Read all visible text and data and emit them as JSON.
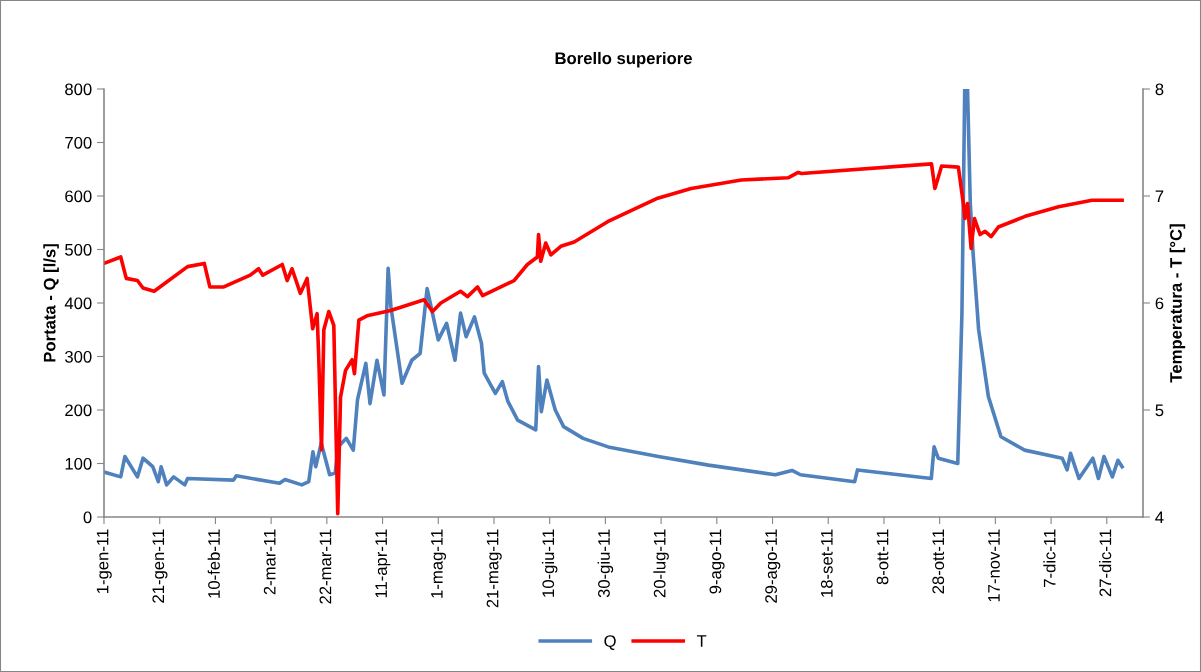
{
  "chart_data": {
    "type": "line",
    "title": "Borello superiore",
    "ylabel": "Portata - Q [l/s]",
    "y2label": "Temperatura - T [°C]",
    "xlim": [
      "2011-01-01",
      "2012-01-09"
    ],
    "xticks": [
      {
        "value": "2011-01-01",
        "label": "1-gen-11"
      },
      {
        "value": "2011-01-21",
        "label": "21-gen-11"
      },
      {
        "value": "2011-02-10",
        "label": "10-feb-11"
      },
      {
        "value": "2011-03-02",
        "label": "2-mar-11"
      },
      {
        "value": "2011-03-22",
        "label": "22-mar-11"
      },
      {
        "value": "2011-04-11",
        "label": "11-apr-11"
      },
      {
        "value": "2011-05-01",
        "label": "1-mag-11"
      },
      {
        "value": "2011-05-21",
        "label": "21-mag-11"
      },
      {
        "value": "2011-06-10",
        "label": "10-giu-11"
      },
      {
        "value": "2011-06-30",
        "label": "30-giu-11"
      },
      {
        "value": "2011-07-20",
        "label": "20-lug-11"
      },
      {
        "value": "2011-08-09",
        "label": "9-ago-11"
      },
      {
        "value": "2011-08-29",
        "label": "29-ago-11"
      },
      {
        "value": "2011-09-18",
        "label": "18-set-11"
      },
      {
        "value": "2011-10-08",
        "label": "8-ott-11"
      },
      {
        "value": "2011-10-28",
        "label": "28-ott-11"
      },
      {
        "value": "2011-11-17",
        "label": "17-nov-11"
      },
      {
        "value": "2011-12-07",
        "label": "7-dic-11"
      },
      {
        "value": "2011-12-27",
        "label": "27-dic-11"
      }
    ],
    "ylim": [
      0,
      800
    ],
    "yticks": [
      0,
      100,
      200,
      300,
      400,
      500,
      600,
      700,
      800
    ],
    "y2lim": [
      4,
      8
    ],
    "y2ticks": [
      4,
      5,
      6,
      7,
      8
    ],
    "legend": "bottom",
    "line_style": "solid",
    "series": [
      {
        "name": "Q",
        "color": "#4f81bd",
        "axis": "y",
        "x": [
          "2011-01-01",
          "2011-01-07",
          "2011-01-08T12:00",
          "2011-01-13",
          "2011-01-15",
          "2011-01-18T12:00",
          "2011-01-20T12:00",
          "2011-01-21T12:00",
          "2011-01-23T12:00",
          "2011-01-26",
          "2011-01-30",
          "2011-01-31",
          "2011-02-16T12:00",
          "2011-02-17T12:00",
          "2011-03-05",
          "2011-03-07",
          "2011-03-13",
          "2011-03-15T12:00",
          "2011-03-17",
          "2011-03-18",
          "2011-03-20",
          "2011-03-23",
          "2011-03-25",
          "2011-03-26",
          "2011-03-29",
          "2011-03-31T12:00",
          "2011-04-02",
          "2011-04-05",
          "2011-04-06T12:00",
          "2011-04-09",
          "2011-04-11T12:00",
          "2011-04-13",
          "2011-04-14",
          "2011-04-18",
          "2011-04-21T12:00",
          "2011-04-24T12:00",
          "2011-04-27",
          "2011-05-01",
          "2011-05-04",
          "2011-05-07",
          "2011-05-09",
          "2011-05-11",
          "2011-05-14",
          "2011-05-16T12:00",
          "2011-05-17T12:00",
          "2011-05-21T12:00",
          "2011-05-24",
          "2011-05-26",
          "2011-05-29T12:00",
          "2011-06-05",
          "2011-06-06",
          "2011-06-07",
          "2011-06-09",
          "2011-06-12",
          "2011-06-15",
          "2011-06-22",
          "2011-07-01",
          "2011-07-19",
          "2011-08-06",
          "2011-08-30",
          "2011-09-05",
          "2011-09-08",
          "2011-09-27T12:00",
          "2011-09-28T12:00",
          "2011-10-25",
          "2011-10-26",
          "2011-10-27T12:00",
          "2011-11-03T12:00",
          "2011-11-05",
          "2011-11-06",
          "2011-11-07",
          "2011-11-08",
          "2011-11-09",
          "2011-11-11",
          "2011-11-14T12:00",
          "2011-11-19",
          "2011-11-27T12:00",
          "2011-12-11",
          "2011-12-12T18:00",
          "2011-12-14",
          "2011-12-17",
          "2011-12-22",
          "2011-12-24",
          "2011-12-26",
          "2011-12-29",
          "2011-12-31",
          "2012-01-01T12:00"
        ],
        "values": [
          84,
          75,
          113,
          75,
          110,
          94,
          66,
          94,
          60,
          75,
          60,
          72,
          69,
          77,
          63,
          70,
          60,
          66,
          122,
          94,
          138,
          79,
          82,
          131,
          147,
          125,
          219,
          287,
          212,
          293,
          228,
          465,
          393,
          250,
          293,
          306,
          427,
          331,
          362,
          293,
          381,
          337,
          374,
          325,
          269,
          231,
          253,
          216,
          181,
          163,
          281,
          197,
          256,
          200,
          169,
          147,
          131,
          113,
          97,
          79,
          87,
          79,
          66,
          88,
          72,
          131,
          110,
          100,
          381,
          800,
          800,
          586,
          493,
          350,
          225,
          150,
          125,
          110,
          88,
          119,
          72,
          110,
          72,
          113,
          75,
          106,
          94
        ]
      },
      {
        "name": "T",
        "color": "#ff0000",
        "axis": "y2",
        "x": [
          "2011-01-01",
          "2011-01-07",
          "2011-01-09",
          "2011-01-13",
          "2011-01-15",
          "2011-01-19",
          "2011-01-31",
          "2011-02-06",
          "2011-02-08",
          "2011-02-13",
          "2011-02-22T12:00",
          "2011-02-25T12:00",
          "2011-02-27",
          "2011-03-06",
          "2011-03-07T18:00",
          "2011-03-09T12:00",
          "2011-03-12T12:00",
          "2011-03-14T22:00",
          "2011-03-16T22:00",
          "2011-03-18T12:00",
          "2011-03-19T02:00",
          "2011-03-20T02:00",
          "2011-03-20T22:00",
          "2011-03-22T17:00",
          "2011-03-24T12:00",
          "2011-03-25T22:00",
          "2011-03-26T22:00",
          "2011-03-28T17:00",
          "2011-03-31T02:00",
          "2011-03-31T22:00",
          "2011-04-02T12:00",
          "2011-04-05T10:00",
          "2011-04-13T22:00",
          "2011-04-25T22:00",
          "2011-04-28T22:00",
          "2011-05-01T22:00",
          "2011-05-09",
          "2011-05-11T12:00",
          "2011-05-15T02:00",
          "2011-05-16T22:00",
          "2011-05-28T05:00",
          "2011-06-02",
          "2011-06-05T14:00",
          "2011-06-06",
          "2011-06-06T19:00",
          "2011-06-08T14:00",
          "2011-06-10T10:00",
          "2011-06-14",
          "2011-06-18T19:00",
          "2011-06-30T19:00",
          "2011-07-18T19:00",
          "2011-07-30T19:00",
          "2011-08-17T19:00",
          "2011-09-03T14:00",
          "2011-09-07T05:00",
          "2011-09-08T10:00",
          "2011-10-25T02:00",
          "2011-10-26T07:00",
          "2011-10-28T17:00",
          "2011-11-03T17:00",
          "2011-11-05T12:00",
          "2011-11-06T02:00",
          "2011-11-07",
          "2011-11-08T07:00",
          "2011-11-09T12:00",
          "2011-11-11T12:00",
          "2011-11-13T07:00",
          "2011-11-15T12:00",
          "2011-11-18T02:00",
          "2011-11-27T17:00",
          "2011-12-09T17:00",
          "2011-12-21T17:00",
          "2012-01-01T12:00"
        ],
        "values": [
          6.37,
          6.43,
          6.23,
          6.21,
          6.14,
          6.11,
          6.34,
          6.37,
          6.15,
          6.15,
          6.26,
          6.32,
          6.26,
          6.36,
          6.21,
          6.32,
          6.09,
          6.23,
          5.76,
          5.9,
          5.5,
          4.63,
          5.75,
          5.92,
          5.79,
          4.03,
          5.12,
          5.37,
          5.47,
          5.34,
          5.84,
          5.88,
          5.93,
          6.03,
          5.92,
          6.0,
          6.11,
          6.06,
          6.15,
          6.07,
          6.21,
          6.36,
          6.43,
          6.64,
          6.39,
          6.56,
          6.45,
          6.53,
          6.57,
          6.76,
          6.98,
          7.07,
          7.15,
          7.17,
          7.22,
          7.21,
          7.3,
          7.07,
          7.28,
          7.27,
          6.93,
          6.79,
          6.93,
          6.51,
          6.79,
          6.64,
          6.67,
          6.62,
          6.71,
          6.81,
          6.9,
          6.96,
          6.96
        ]
      }
    ]
  }
}
